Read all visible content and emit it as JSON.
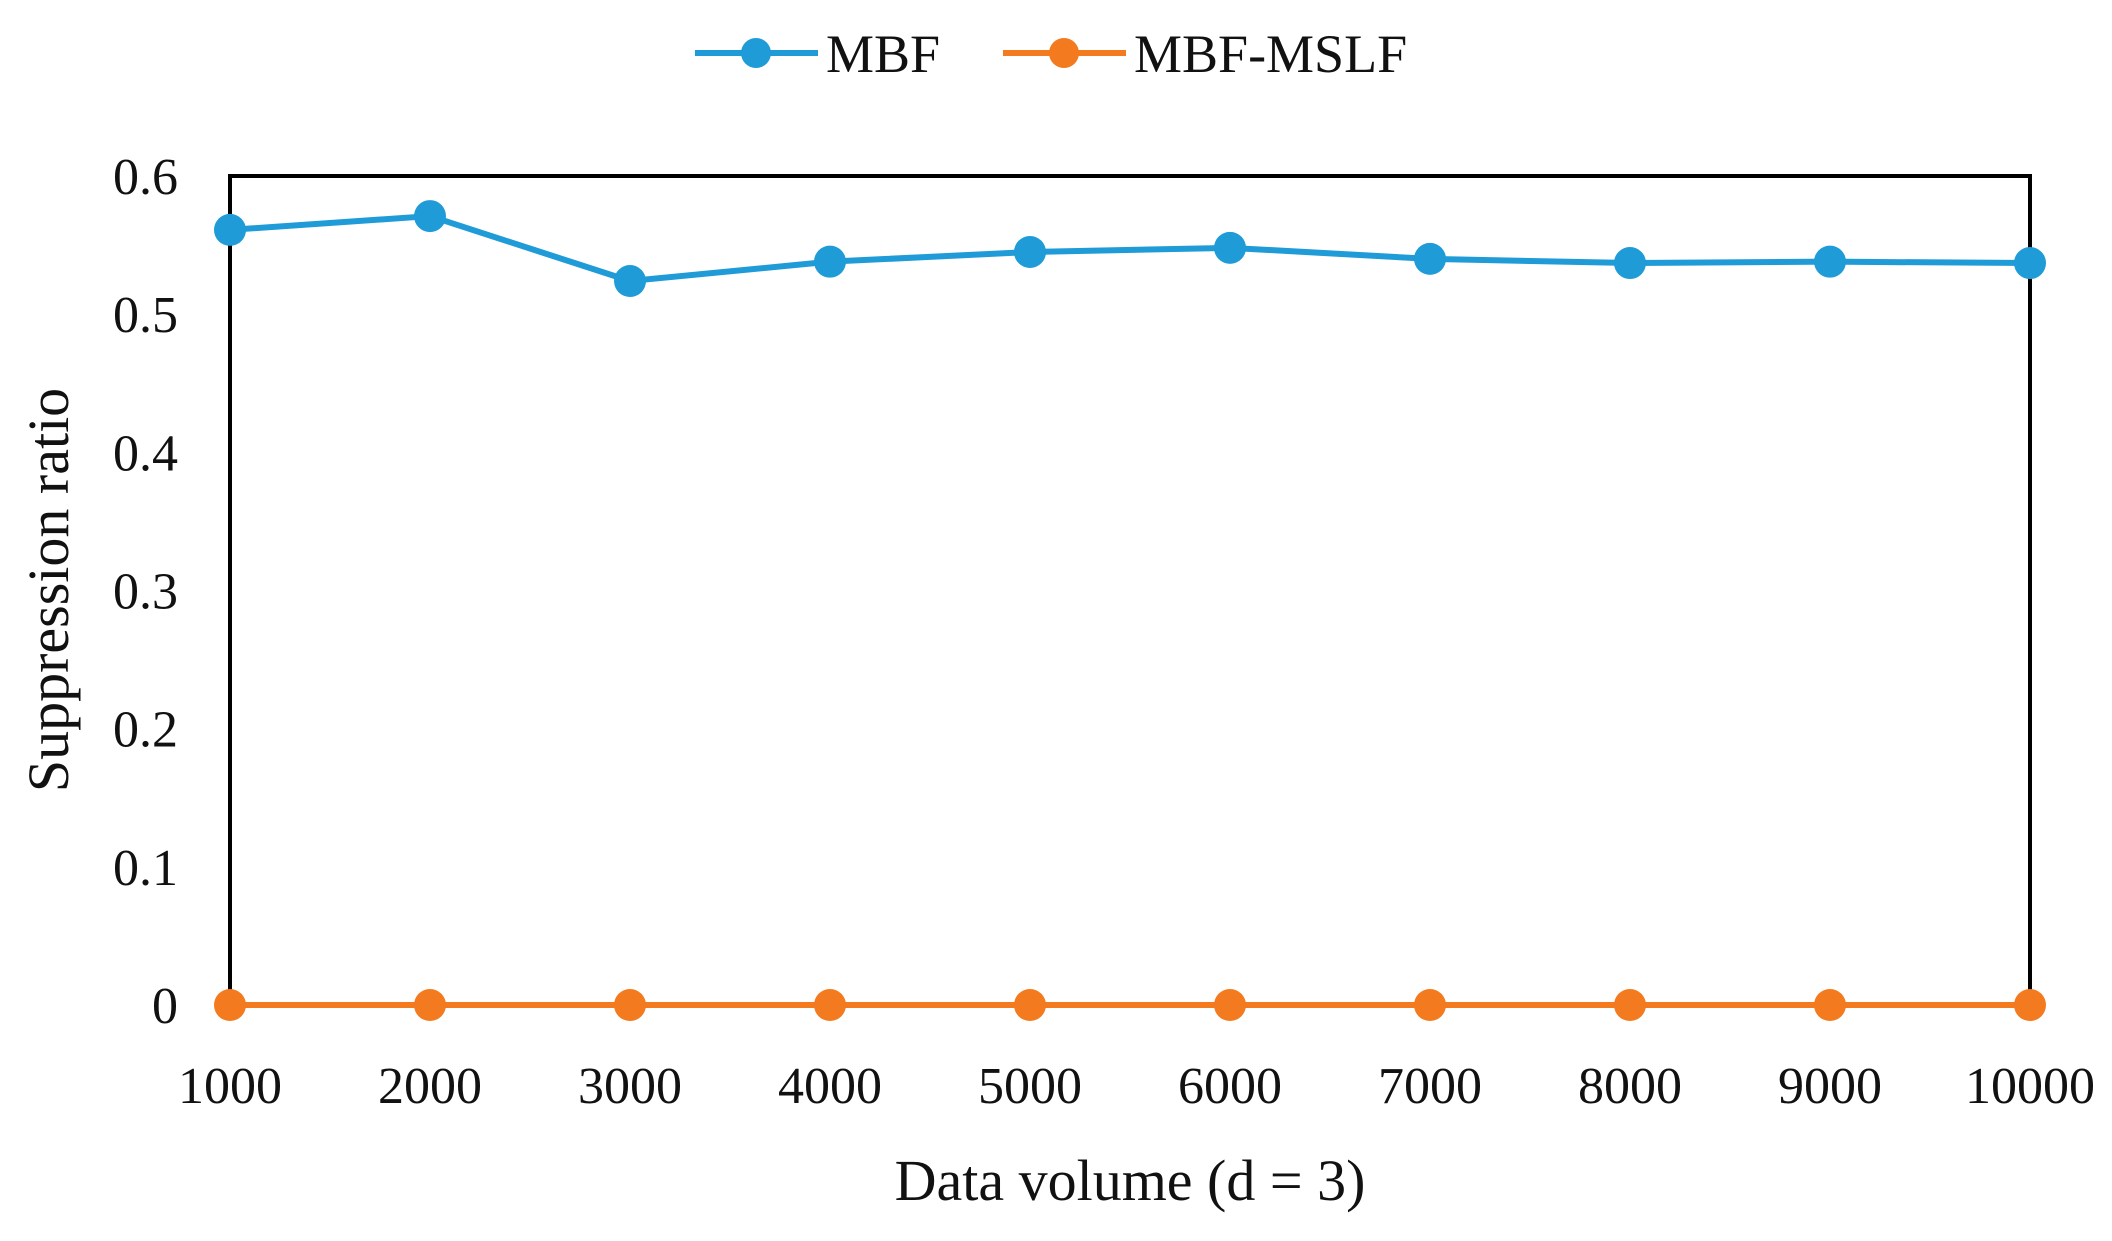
{
  "chart_data": {
    "type": "line",
    "title": "",
    "xlabel": "Data volume (d = 3)",
    "ylabel": "Suppression ratio",
    "categories": [
      "1000",
      "2000",
      "3000",
      "4000",
      "5000",
      "6000",
      "7000",
      "8000",
      "9000",
      "10000"
    ],
    "ylim": [
      0,
      0.6
    ],
    "yticks": [
      "0",
      "0.1",
      "0.2",
      "0.3",
      "0.4",
      "0.5",
      "0.6"
    ],
    "ytick_values": [
      0,
      0.1,
      0.2,
      0.3,
      0.4,
      0.5,
      0.6
    ],
    "grid": false,
    "legend_position": "top-center",
    "series": [
      {
        "name": "MBF",
        "color": "#1f9bd7",
        "values": [
          0.561,
          0.571,
          0.524,
          0.538,
          0.545,
          0.548,
          0.54,
          0.537,
          0.538,
          0.537
        ]
      },
      {
        "name": "MBF-MSLF",
        "color": "#f47a20",
        "values": [
          0,
          0,
          0,
          0,
          0,
          0,
          0,
          0,
          0,
          0
        ]
      }
    ]
  }
}
